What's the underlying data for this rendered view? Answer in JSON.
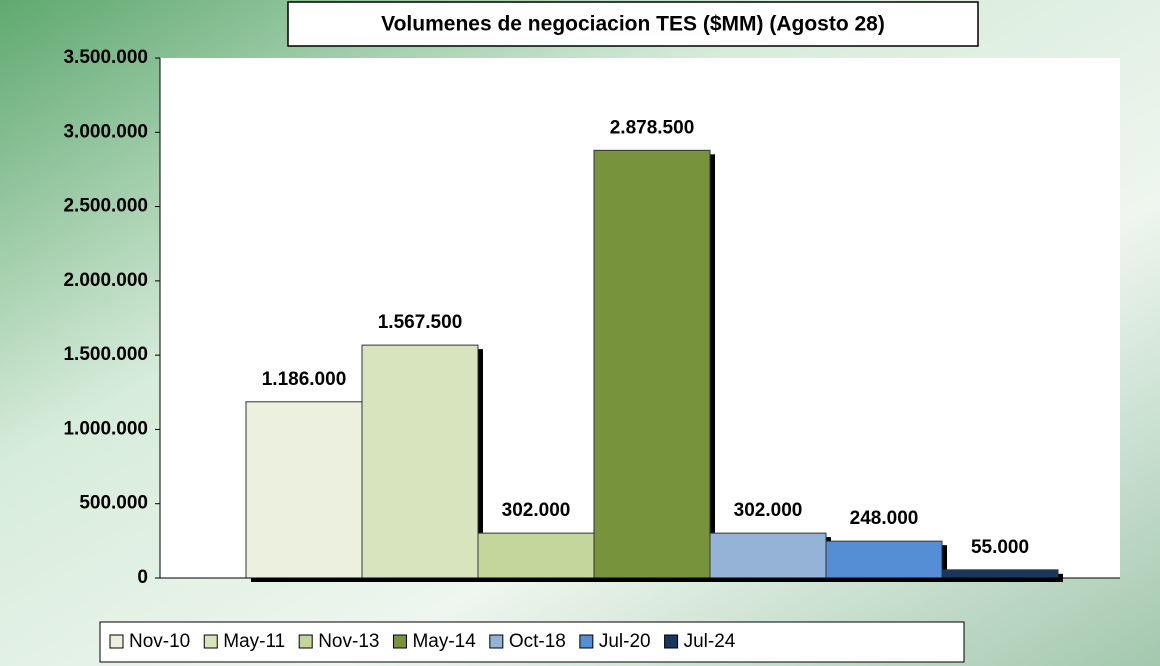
{
  "chart_data": {
    "type": "bar",
    "title": "Volumenes de negociacion TES ($MM) (Agosto 28)",
    "series": [
      {
        "name": "Nov-10",
        "color": "#ebf1de",
        "values": [
          1186000
        ],
        "value_labels": [
          "1.186.000"
        ]
      },
      {
        "name": "May-11",
        "color": "#d7e4bd",
        "values": [
          1567500
        ],
        "value_labels": [
          "1.567.500"
        ]
      },
      {
        "name": "Nov-13",
        "color": "#c3d69b",
        "values": [
          302000
        ],
        "value_labels": [
          "302.000"
        ]
      },
      {
        "name": "May-14",
        "color": "#77933c",
        "values": [
          2878500
        ],
        "value_labels": [
          "2.878.500"
        ]
      },
      {
        "name": "Oct-18",
        "color": "#95b3d7",
        "values": [
          302000
        ],
        "value_labels": [
          "302.000"
        ]
      },
      {
        "name": "Jul-20",
        "color": "#558ed5",
        "values": [
          248000
        ],
        "value_labels": [
          "248.000"
        ]
      },
      {
        "name": "Jul-24",
        "color": "#17375e",
        "values": [
          55000
        ],
        "value_labels": [
          "55.000"
        ]
      }
    ],
    "ylim": [
      0,
      3500000
    ],
    "yticks": [
      0,
      {
        "value": 500000,
        "label": "500.000"
      },
      {
        "value": 1000000,
        "label": "1.000.000"
      },
      {
        "value": 1500000,
        "label": "1.500.000"
      },
      {
        "value": 2000000,
        "label": "2.000.000"
      },
      {
        "value": 2500000,
        "label": "2.500.000"
      },
      {
        "value": 3000000,
        "label": "3.000.000"
      },
      {
        "value": 3500000,
        "label": "3.500.000"
      }
    ],
    "legend": "bottom"
  }
}
